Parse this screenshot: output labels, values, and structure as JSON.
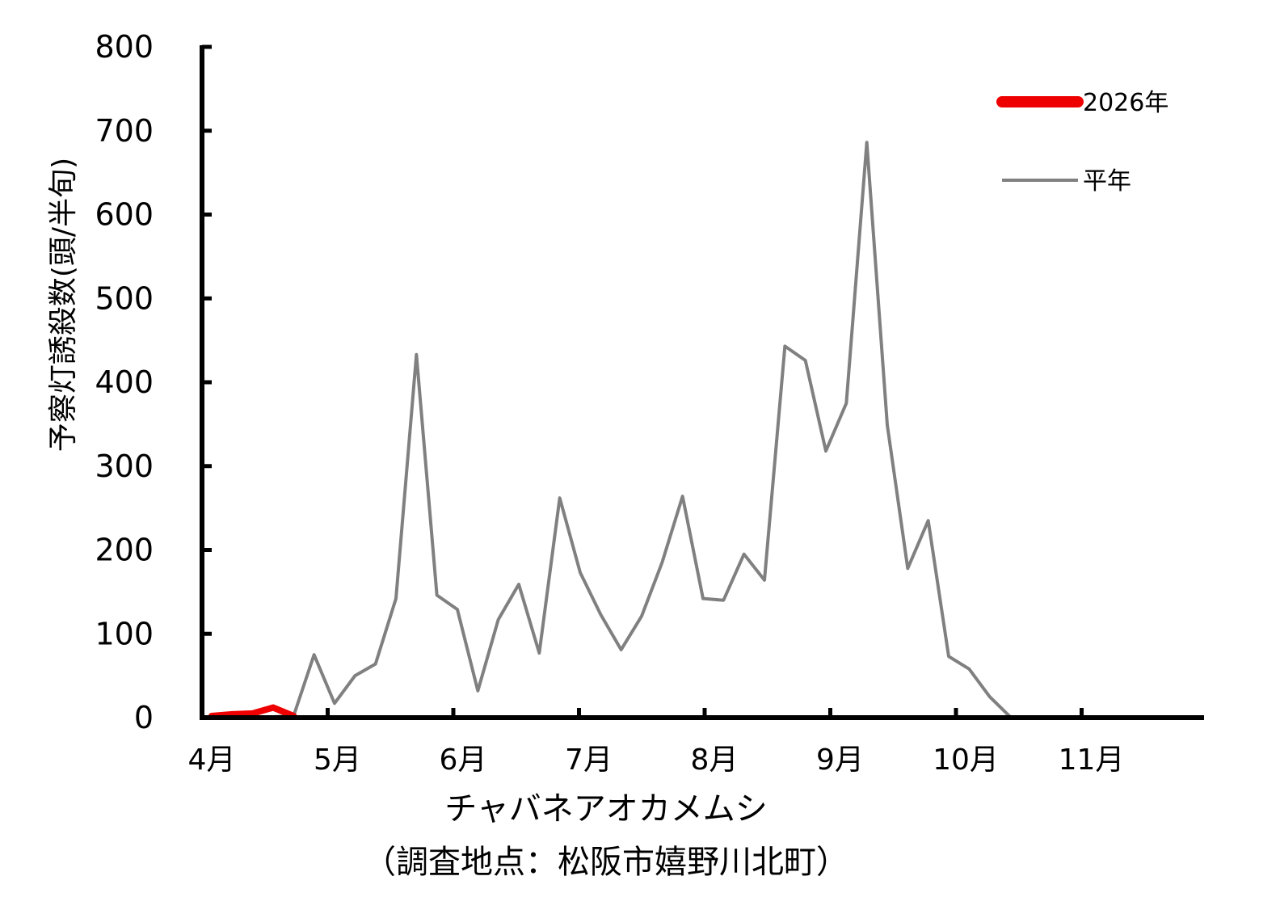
{
  "chart_data": {
    "type": "line",
    "ylabel": "予察灯誘殺数(頭/半旬)",
    "xlabel": "チャバネアオカメムシ",
    "subtitle": "（調査地点：松阪市嬉野川北町）",
    "ylim": [
      0,
      800
    ],
    "yticks": [
      "0",
      "100",
      "200",
      "300",
      "400",
      "500",
      "600",
      "700",
      "800"
    ],
    "xlim": [
      1,
      49
    ],
    "month_labels": [
      "4月",
      "5月",
      "6月",
      "7月",
      "8月",
      "9月",
      "10月",
      "11月"
    ],
    "grid": false,
    "legend_position": "top-right",
    "series": [
      {
        "name": "2026年",
        "color": "#ee0000",
        "x": [
          1,
          2,
          3,
          4,
          5
        ],
        "values": [
          2,
          4,
          5,
          12,
          2
        ]
      },
      {
        "name": "平年",
        "color": "#808080",
        "x": [
          1,
          2,
          3,
          4,
          5,
          6,
          7,
          8,
          9,
          10,
          11,
          12,
          13,
          14,
          15,
          16,
          17,
          18,
          19,
          20,
          21,
          22,
          23,
          24,
          25,
          26,
          27,
          28,
          29,
          30,
          31,
          32,
          33,
          34,
          35,
          36,
          37,
          38,
          39,
          40,
          41,
          42,
          43,
          44,
          45,
          46,
          47,
          48,
          49
        ],
        "values": [
          0,
          0,
          0,
          1,
          2,
          75,
          17,
          50,
          64,
          142,
          433,
          146,
          129,
          32,
          117,
          159,
          77,
          262,
          173,
          123,
          81,
          121,
          185,
          264,
          142,
          140,
          195,
          164,
          443,
          426,
          318,
          375,
          686,
          349,
          178,
          235,
          73,
          58,
          25,
          1,
          0,
          0,
          0,
          0,
          0,
          0,
          0,
          0,
          0
        ]
      }
    ]
  }
}
